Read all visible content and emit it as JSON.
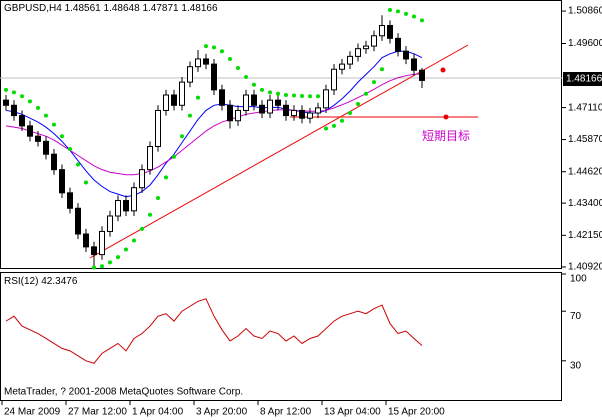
{
  "chart_data": {
    "type": "candlestick",
    "title": "GBPUSD,H4",
    "annotation": "短期目标",
    "footer": "MetaTrader, ? 2001-2008 MetaQuotes Software Corp.",
    "ylim": [
      1.4088,
      1.5129
    ],
    "yticks": [
      {
        "value": 1.5086,
        "label": "1.50860"
      },
      {
        "value": 1.496,
        "label": "1.49600"
      },
      {
        "value": 1.4711,
        "label": "1.47110"
      },
      {
        "value": 1.4587,
        "label": "1.45870"
      },
      {
        "value": 1.4462,
        "label": "1.44620"
      },
      {
        "value": 1.434,
        "label": "1.43400"
      },
      {
        "value": 1.4215,
        "label": "1.42150"
      },
      {
        "value": 1.4092,
        "label": "1.40920"
      }
    ],
    "xticks": [
      {
        "value": 0,
        "label": "24 Mar 2009"
      },
      {
        "value": 8,
        "label": "27 Mar 12:00"
      },
      {
        "value": 16,
        "label": "1 Apr 04:00"
      },
      {
        "value": 24,
        "label": "3 Apr 20:00"
      },
      {
        "value": 32,
        "label": "8 Apr 12:00"
      },
      {
        "value": 40,
        "label": "13 Apr 04:00"
      },
      {
        "value": 48,
        "label": "15 Apr 20:00"
      }
    ],
    "open": [
      1.474,
      1.472,
      1.468,
      1.464,
      1.46,
      1.458,
      1.453,
      1.447,
      1.438,
      1.432,
      1.422,
      1.417,
      1.414,
      1.423,
      1.429,
      1.435,
      1.431,
      1.44,
      1.447,
      1.456,
      1.47,
      1.476,
      1.472,
      1.481,
      1.487,
      1.49,
      1.488,
      1.478,
      1.472,
      1.466,
      1.47,
      1.476,
      1.472,
      1.469,
      1.474,
      1.472,
      1.468,
      1.47,
      1.467,
      1.469,
      1.471,
      1.478,
      1.486,
      1.488,
      1.491,
      1.494,
      1.495,
      1.499,
      1.503,
      1.498,
      1.493,
      1.49,
      1.48561
    ],
    "high": [
      1.476,
      1.474,
      1.47,
      1.466,
      1.462,
      1.46,
      1.455,
      1.449,
      1.44,
      1.434,
      1.424,
      1.419,
      1.425,
      1.431,
      1.437,
      1.437,
      1.442,
      1.449,
      1.458,
      1.472,
      1.478,
      1.478,
      1.483,
      1.489,
      1.4935,
      1.492,
      1.49,
      1.48,
      1.474,
      1.472,
      1.478,
      1.478,
      1.474,
      1.476,
      1.476,
      1.474,
      1.472,
      1.472,
      1.471,
      1.473,
      1.48,
      1.488,
      1.49,
      1.493,
      1.496,
      1.497,
      1.501,
      1.507,
      1.505,
      1.5,
      1.495,
      1.492,
      1.48648
    ],
    "low": [
      1.47,
      1.466,
      1.462,
      1.458,
      1.456,
      1.451,
      1.445,
      1.436,
      1.43,
      1.42,
      1.415,
      1.4095,
      1.412,
      1.421,
      1.427,
      1.429,
      1.429,
      1.438,
      1.445,
      1.454,
      1.468,
      1.47,
      1.47,
      1.479,
      1.485,
      1.486,
      1.476,
      1.47,
      1.463,
      1.464,
      1.468,
      1.47,
      1.467,
      1.467,
      1.47,
      1.466,
      1.466,
      1.465,
      1.465,
      1.467,
      1.469,
      1.476,
      1.484,
      1.486,
      1.489,
      1.492,
      1.493,
      1.497,
      1.496,
      1.491,
      1.488,
      1.4836,
      1.47871
    ],
    "close": [
      1.472,
      1.468,
      1.464,
      1.46,
      1.458,
      1.453,
      1.447,
      1.438,
      1.432,
      1.422,
      1.417,
      1.414,
      1.423,
      1.429,
      1.435,
      1.431,
      1.44,
      1.447,
      1.456,
      1.47,
      1.476,
      1.472,
      1.481,
      1.487,
      1.49,
      1.488,
      1.478,
      1.472,
      1.466,
      1.47,
      1.476,
      1.472,
      1.469,
      1.474,
      1.472,
      1.468,
      1.47,
      1.467,
      1.469,
      1.471,
      1.478,
      1.486,
      1.488,
      1.491,
      1.494,
      1.495,
      1.499,
      1.503,
      1.498,
      1.493,
      1.49,
      1.48561,
      1.48166
    ],
    "series": [
      {
        "color": "#0000ff",
        "values": [
          1.47,
          1.4695,
          1.4685,
          1.467,
          1.4655,
          1.4635,
          1.461,
          1.458,
          1.4545,
          1.4505,
          1.4465,
          1.443,
          1.4405,
          1.4385,
          1.4375,
          1.4365,
          1.437,
          1.4385,
          1.441,
          1.445,
          1.4495,
          1.453,
          1.4575,
          1.462,
          1.4665,
          1.47,
          1.472,
          1.4725,
          1.472,
          1.4715,
          1.4715,
          1.4715,
          1.471,
          1.4712,
          1.4712,
          1.4705,
          1.47,
          1.4695,
          1.469,
          1.469,
          1.47,
          1.472,
          1.4745,
          1.4775,
          1.481,
          1.484,
          1.487,
          1.4905,
          1.492,
          1.493,
          1.493,
          1.492,
          1.4905
        ]
      },
      {
        "color": "#cc00cc",
        "values": [
          1.464,
          1.4635,
          1.463,
          1.462,
          1.461,
          1.46,
          1.4585,
          1.4565,
          1.4545,
          1.4525,
          1.4505,
          1.4485,
          1.447,
          1.446,
          1.4455,
          1.445,
          1.445,
          1.4455,
          1.4465,
          1.448,
          1.45,
          1.452,
          1.4545,
          1.457,
          1.4595,
          1.462,
          1.464,
          1.4655,
          1.4665,
          1.4675,
          1.4685,
          1.469,
          1.4695,
          1.47,
          1.4702,
          1.4702,
          1.47,
          1.4698,
          1.4697,
          1.4697,
          1.47,
          1.471,
          1.4722,
          1.4735,
          1.475,
          1.4765,
          1.4782,
          1.48,
          1.4815,
          1.4827,
          1.4835,
          1.484,
          1.4842
        ]
      }
    ],
    "sar": {
      "color": "#00dd00",
      "values": [
        1.478,
        1.477,
        1.4755,
        1.4735,
        1.471,
        1.468,
        1.4645,
        1.46,
        1.455,
        1.449,
        1.442,
        1.409,
        1.4095,
        1.411,
        1.413,
        1.416,
        1.4195,
        1.424,
        1.4295,
        1.436,
        1.444,
        1.452,
        1.46,
        1.468,
        1.475,
        1.495,
        1.4945,
        1.493,
        1.49,
        1.4865,
        1.483,
        1.48,
        1.478,
        1.477,
        1.4765,
        1.476,
        1.4758,
        1.4756,
        1.4755,
        1.4755,
        1.463,
        1.464,
        1.466,
        1.469,
        1.4725,
        1.4765,
        1.481,
        1.486,
        1.509,
        1.5085,
        1.5075,
        1.5065,
        1.505
      ]
    },
    "rsi": {
      "name": "RSI(12)",
      "color": "#cc0000",
      "ylim": [
        0,
        100
      ],
      "yticks": [
        100,
        70,
        30
      ],
      "values": [
        62,
        66,
        58,
        55,
        52,
        48,
        44,
        40,
        38,
        34,
        30,
        28,
        36,
        40,
        44,
        38,
        48,
        52,
        58,
        66,
        68,
        62,
        70,
        74,
        78,
        80,
        66,
        55,
        46,
        50,
        56,
        50,
        48,
        54,
        52,
        46,
        50,
        44,
        48,
        50,
        56,
        62,
        66,
        68,
        70,
        68,
        72,
        75,
        60,
        52,
        54,
        48,
        42.3476
      ]
    }
  }
}
